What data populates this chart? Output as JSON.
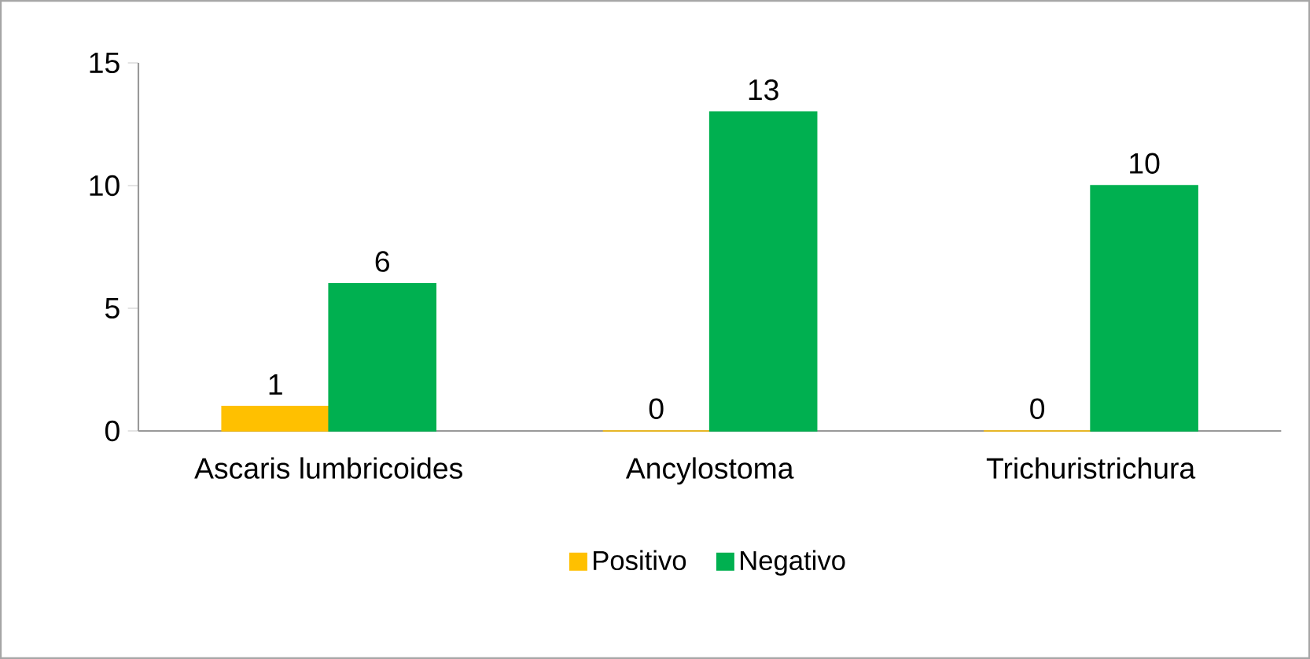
{
  "chart_data": {
    "type": "bar",
    "categories": [
      "Ascaris lumbricoides",
      "Ancylostoma",
      "Trichuristrichura"
    ],
    "series": [
      {
        "name": "Positivo",
        "color": "#ffc000",
        "values": [
          1,
          0,
          0
        ]
      },
      {
        "name": "Negativo",
        "color": "#00b050",
        "values": [
          6,
          13,
          10
        ]
      }
    ],
    "ylim": [
      0,
      15
    ],
    "yticks": [
      0,
      5,
      10,
      15
    ],
    "data_labels": true,
    "legend": "bottom",
    "grid": false
  }
}
